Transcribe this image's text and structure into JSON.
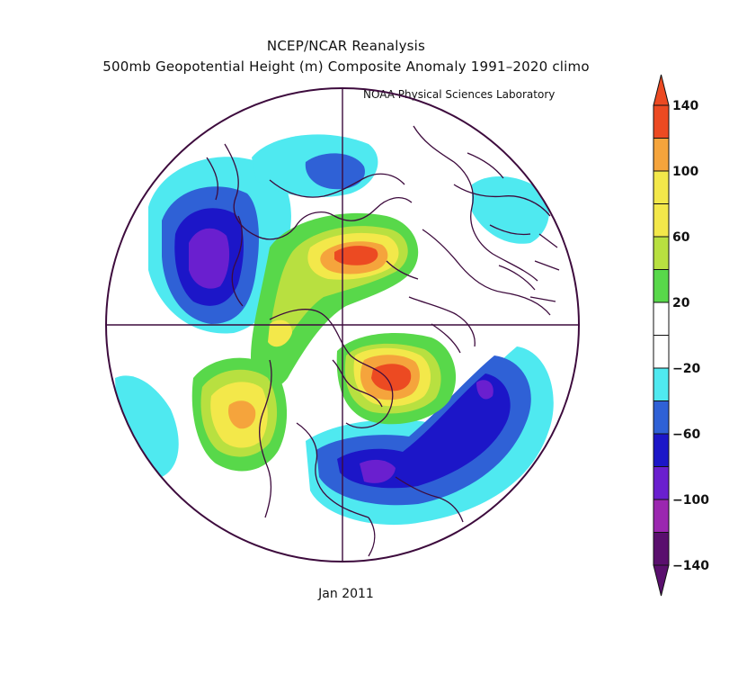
{
  "titles": {
    "line1": "NCEP/NCAR Reanalysis",
    "line2": "500mb Geopotential Height (m) Composite Anomaly 1991–2020 climo",
    "credit": "NOAA Physical Sciences Laboratory",
    "date": "Jan 2011"
  },
  "colorbar": {
    "labels": [
      "140",
      "100",
      "60",
      "20",
      "−20",
      "−60",
      "−100",
      "−140"
    ],
    "bins": [
      {
        "color": "#5a0f6e"
      },
      {
        "color": "#9b27b0"
      },
      {
        "color": "#6a1fcf"
      },
      {
        "color": "#1c16c8"
      },
      {
        "color": "#2f61d6"
      },
      {
        "color": "#4fe9f0"
      },
      {
        "color": "#ffffff"
      },
      {
        "color": "#ffffff"
      },
      {
        "color": "#58d84a"
      },
      {
        "color": "#b8e040"
      },
      {
        "color": "#f3e84a"
      },
      {
        "color": "#f3e84a"
      },
      {
        "color": "#f5a43c"
      },
      {
        "color": "#ec4a22"
      }
    ],
    "top_arrow_color": "#ec4a22",
    "bottom_arrow_color": "#5a0f6e"
  },
  "map": {
    "projection": "north-polar-stereographic",
    "outline_color": "#3d0b3d",
    "anomaly_centers": [
      {
        "label": "positive",
        "value": 140
      },
      {
        "label": "positive",
        "value": 140
      },
      {
        "label": "positive",
        "value": 100
      },
      {
        "label": "negative",
        "value": -100
      },
      {
        "label": "negative",
        "value": -100
      },
      {
        "label": "negative",
        "value": -100
      }
    ]
  }
}
